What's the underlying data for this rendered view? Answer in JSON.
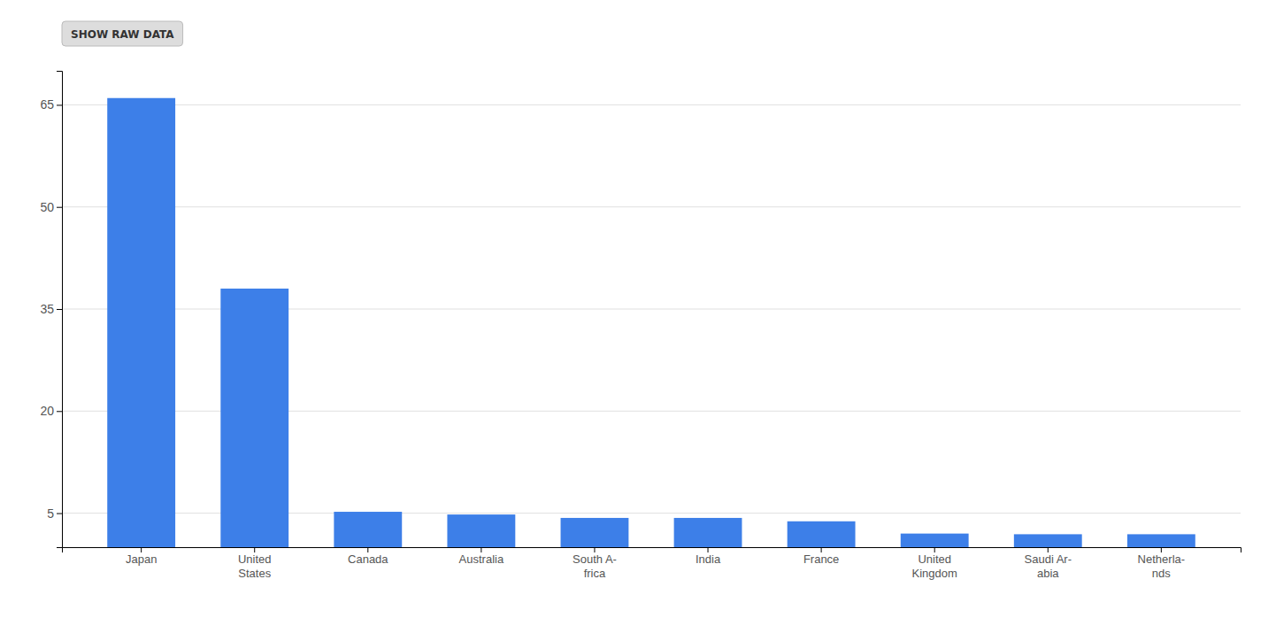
{
  "chart_data": {
    "type": "bar",
    "categories": [
      "Japan",
      "United\nStates",
      "Canada",
      "Australia",
      "South A-\nfrica",
      "India",
      "France",
      "United\nKingdom",
      "Saudi Ar-\nabia",
      "Netherla-\nnds"
    ],
    "values": [
      66,
      38,
      5.2,
      4.8,
      4.3,
      4.3,
      3.8,
      2.0,
      1.9,
      1.9
    ],
    "color": "#3d7fe8",
    "ylim": [
      0,
      70
    ],
    "yticks": [
      5,
      20,
      35,
      50,
      65
    ],
    "grid": true,
    "annotations": [
      "SHOW RAW DATA"
    ]
  }
}
